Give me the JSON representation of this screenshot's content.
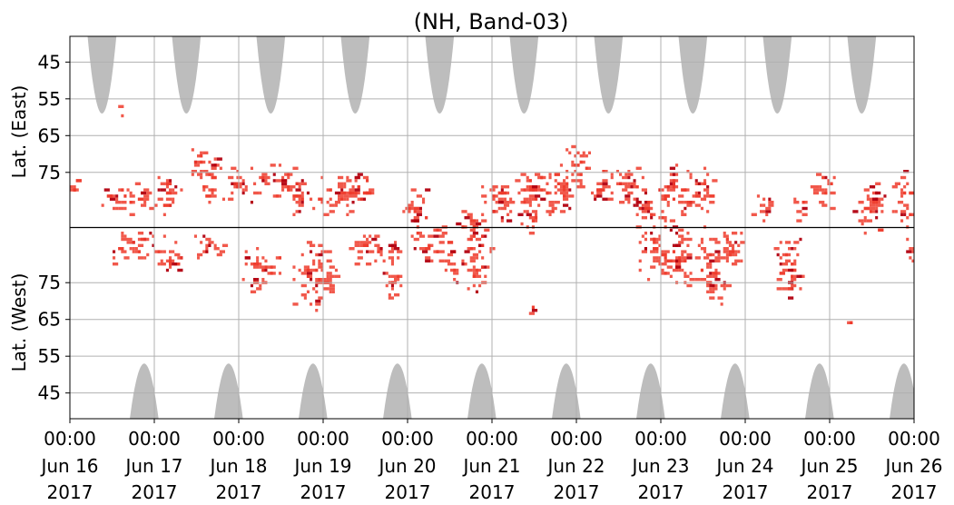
{
  "chart_data": {
    "type": "heatmap",
    "title": "(NH, Band-03)",
    "ylabel_top": "Lat. (East)",
    "ylabel_bottom": "Lat. (West)",
    "x_tick_labels": [
      {
        "time": "00:00",
        "date": "Jun 16",
        "year": "2017"
      },
      {
        "time": "00:00",
        "date": "Jun 17",
        "year": "2017"
      },
      {
        "time": "00:00",
        "date": "Jun 18",
        "year": "2017"
      },
      {
        "time": "00:00",
        "date": "Jun 19",
        "year": "2017"
      },
      {
        "time": "00:00",
        "date": "Jun 20",
        "year": "2017"
      },
      {
        "time": "00:00",
        "date": "Jun 21",
        "year": "2017"
      },
      {
        "time": "00:00",
        "date": "Jun 22",
        "year": "2017"
      },
      {
        "time": "00:00",
        "date": "Jun 23",
        "year": "2017"
      },
      {
        "time": "00:00",
        "date": "Jun 24",
        "year": "2017"
      },
      {
        "time": "00:00",
        "date": "Jun 25",
        "year": "2017"
      },
      {
        "time": "00:00",
        "date": "Jun 26",
        "year": "2017"
      }
    ],
    "xlim": [
      "2017-06-16 00:00",
      "2017-06-26 00:00"
    ],
    "y_tick_labels_top": [
      "45",
      "55",
      "65",
      "75"
    ],
    "y_tick_labels_bottom": [
      "75",
      "65",
      "55",
      "45"
    ],
    "y_ticks_top_lat": [
      45,
      55,
      65,
      75
    ],
    "y_ticks_bottom_lat": [
      75,
      65,
      55,
      45
    ],
    "ylim_east": [
      38,
      90
    ],
    "ylim_west": [
      90,
      38
    ],
    "grid": true,
    "colors": {
      "activity": "#ef3b2c",
      "activity_strong": "#b2000f",
      "daylight_shade": "#bdbdbd",
      "grid": "#b0b0b0",
      "equator_line": "#000000"
    },
    "daylight_east": [
      {
        "center_day": 0.38,
        "half_width_days": 0.17,
        "min_lat": 59
      },
      {
        "center_day": 1.38,
        "half_width_days": 0.17,
        "min_lat": 59
      },
      {
        "center_day": 2.38,
        "half_width_days": 0.17,
        "min_lat": 59
      },
      {
        "center_day": 3.38,
        "half_width_days": 0.17,
        "min_lat": 59
      },
      {
        "center_day": 4.38,
        "half_width_days": 0.17,
        "min_lat": 59
      },
      {
        "center_day": 5.38,
        "half_width_days": 0.17,
        "min_lat": 59
      },
      {
        "center_day": 6.38,
        "half_width_days": 0.17,
        "min_lat": 59
      },
      {
        "center_day": 7.38,
        "half_width_days": 0.17,
        "min_lat": 59
      },
      {
        "center_day": 8.38,
        "half_width_days": 0.17,
        "min_lat": 59
      },
      {
        "center_day": 9.38,
        "half_width_days": 0.17,
        "min_lat": 59
      }
    ],
    "daylight_west": [
      {
        "center_day": 0.88,
        "half_width_days": 0.17,
        "min_lat": 53
      },
      {
        "center_day": 1.88,
        "half_width_days": 0.17,
        "min_lat": 53
      },
      {
        "center_day": 2.88,
        "half_width_days": 0.17,
        "min_lat": 53
      },
      {
        "center_day": 3.88,
        "half_width_days": 0.17,
        "min_lat": 53
      },
      {
        "center_day": 4.88,
        "half_width_days": 0.17,
        "min_lat": 53
      },
      {
        "center_day": 5.88,
        "half_width_days": 0.17,
        "min_lat": 53
      },
      {
        "center_day": 6.88,
        "half_width_days": 0.17,
        "min_lat": 53
      },
      {
        "center_day": 7.88,
        "half_width_days": 0.17,
        "min_lat": 53
      },
      {
        "center_day": 8.88,
        "half_width_days": 0.17,
        "min_lat": 53
      },
      {
        "center_day": 9.88,
        "half_width_days": 0.17,
        "min_lat": 53
      }
    ],
    "activity_clusters": [
      {
        "day": 0.05,
        "lat": 79,
        "hemisphere": "east",
        "d_width": 0.12,
        "lat_spread": 3,
        "intensity": 0.4
      },
      {
        "day": 0.6,
        "lat": 58,
        "hemisphere": "east",
        "d_width": 0.05,
        "lat_spread": 2,
        "intensity": 0.4
      },
      {
        "day": 0.7,
        "lat": 82,
        "hemisphere": "east",
        "d_width": 0.35,
        "lat_spread": 5,
        "intensity": 0.5
      },
      {
        "day": 0.8,
        "lat": 85,
        "hemisphere": "west",
        "d_width": 0.35,
        "lat_spread": 5,
        "intensity": 0.5
      },
      {
        "day": 1.15,
        "lat": 80,
        "hemisphere": "east",
        "d_width": 0.2,
        "lat_spread": 6,
        "intensity": 0.5
      },
      {
        "day": 1.2,
        "lat": 82,
        "hemisphere": "west",
        "d_width": 0.2,
        "lat_spread": 5,
        "intensity": 0.5
      },
      {
        "day": 1.6,
        "lat": 75,
        "hemisphere": "east",
        "d_width": 0.2,
        "lat_spread": 9,
        "intensity": 0.8
      },
      {
        "day": 1.65,
        "lat": 85,
        "hemisphere": "west",
        "d_width": 0.2,
        "lat_spread": 4,
        "intensity": 0.8
      },
      {
        "day": 2.0,
        "lat": 79,
        "hemisphere": "east",
        "d_width": 0.2,
        "lat_spread": 6,
        "intensity": 0.6
      },
      {
        "day": 2.25,
        "lat": 79,
        "hemisphere": "west",
        "d_width": 0.25,
        "lat_spread": 7,
        "intensity": 0.5
      },
      {
        "day": 2.5,
        "lat": 77,
        "hemisphere": "east",
        "d_width": 0.3,
        "lat_spread": 6,
        "intensity": 0.5
      },
      {
        "day": 2.75,
        "lat": 82,
        "hemisphere": "east",
        "d_width": 0.15,
        "lat_spread": 6,
        "intensity": 0.9
      },
      {
        "day": 2.9,
        "lat": 77,
        "hemisphere": "west",
        "d_width": 0.3,
        "lat_spread": 10,
        "intensity": 0.7
      },
      {
        "day": 3.2,
        "lat": 81,
        "hemisphere": "east",
        "d_width": 0.3,
        "lat_spread": 6,
        "intensity": 0.6
      },
      {
        "day": 3.4,
        "lat": 79,
        "hemisphere": "east",
        "d_width": 0.2,
        "lat_spread": 6,
        "intensity": 0.5
      },
      {
        "day": 3.5,
        "lat": 85,
        "hemisphere": "west",
        "d_width": 0.25,
        "lat_spread": 5,
        "intensity": 0.5
      },
      {
        "day": 3.8,
        "lat": 78,
        "hemisphere": "west",
        "d_width": 0.15,
        "lat_spread": 10,
        "intensity": 0.5
      },
      {
        "day": 4.1,
        "lat": 85,
        "hemisphere": "east",
        "d_width": 0.2,
        "lat_spread": 6,
        "intensity": 0.5
      },
      {
        "day": 4.25,
        "lat": 86,
        "hemisphere": "west",
        "d_width": 0.25,
        "lat_spread": 6,
        "intensity": 0.5
      },
      {
        "day": 4.5,
        "lat": 80,
        "hemisphere": "west",
        "d_width": 0.1,
        "lat_spread": 7,
        "intensity": 0.4
      },
      {
        "day": 4.75,
        "lat": 88,
        "hemisphere": "east",
        "d_width": 0.2,
        "lat_spread": 3,
        "intensity": 0.5
      },
      {
        "day": 4.8,
        "lat": 83,
        "hemisphere": "west",
        "d_width": 0.2,
        "lat_spread": 12,
        "intensity": 0.6
      },
      {
        "day": 5.05,
        "lat": 83,
        "hemisphere": "east",
        "d_width": 0.25,
        "lat_spread": 7,
        "intensity": 0.5
      },
      {
        "day": 5.45,
        "lat": 68,
        "hemisphere": "west",
        "d_width": 0.05,
        "lat_spread": 4,
        "intensity": 0.4
      },
      {
        "day": 5.5,
        "lat": 82,
        "hemisphere": "east",
        "d_width": 0.25,
        "lat_spread": 11,
        "intensity": 0.5
      },
      {
        "day": 5.8,
        "lat": 79,
        "hemisphere": "east",
        "d_width": 0.2,
        "lat_spread": 8,
        "intensity": 0.5
      },
      {
        "day": 6.0,
        "lat": 73,
        "hemisphere": "east",
        "d_width": 0.2,
        "lat_spread": 7,
        "intensity": 0.5
      },
      {
        "day": 6.3,
        "lat": 80,
        "hemisphere": "east",
        "d_width": 0.15,
        "lat_spread": 7,
        "intensity": 0.4
      },
      {
        "day": 6.6,
        "lat": 78,
        "hemisphere": "east",
        "d_width": 0.2,
        "lat_spread": 7,
        "intensity": 0.5
      },
      {
        "day": 6.8,
        "lat": 84,
        "hemisphere": "east",
        "d_width": 0.2,
        "lat_spread": 7,
        "intensity": 0.9
      },
      {
        "day": 6.9,
        "lat": 85,
        "hemisphere": "west",
        "d_width": 0.2,
        "lat_spread": 10,
        "intensity": 0.5
      },
      {
        "day": 7.15,
        "lat": 80,
        "hemisphere": "east",
        "d_width": 0.2,
        "lat_spread": 10,
        "intensity": 0.5
      },
      {
        "day": 7.2,
        "lat": 82,
        "hemisphere": "west",
        "d_width": 0.25,
        "lat_spread": 10,
        "intensity": 0.5
      },
      {
        "day": 7.45,
        "lat": 80,
        "hemisphere": "east",
        "d_width": 0.2,
        "lat_spread": 8,
        "intensity": 0.5
      },
      {
        "day": 7.6,
        "lat": 80,
        "hemisphere": "west",
        "d_width": 0.2,
        "lat_spread": 12,
        "intensity": 0.7
      },
      {
        "day": 7.8,
        "lat": 84,
        "hemisphere": "west",
        "d_width": 0.2,
        "lat_spread": 6,
        "intensity": 0.5
      },
      {
        "day": 8.2,
        "lat": 84,
        "hemisphere": "east",
        "d_width": 0.15,
        "lat_spread": 4,
        "intensity": 0.5
      },
      {
        "day": 8.5,
        "lat": 80,
        "hemisphere": "west",
        "d_width": 0.2,
        "lat_spread": 10,
        "intensity": 0.5
      },
      {
        "day": 8.6,
        "lat": 84,
        "hemisphere": "east",
        "d_width": 0.1,
        "lat_spread": 4,
        "intensity": 0.4
      },
      {
        "day": 8.9,
        "lat": 80,
        "hemisphere": "east",
        "d_width": 0.15,
        "lat_spread": 7,
        "intensity": 0.5
      },
      {
        "day": 9.2,
        "lat": 66,
        "hemisphere": "west",
        "d_width": 0.05,
        "lat_spread": 3,
        "intensity": 0.4
      },
      {
        "day": 9.5,
        "lat": 84,
        "hemisphere": "east",
        "d_width": 0.25,
        "lat_spread": 8,
        "intensity": 0.7
      },
      {
        "day": 9.85,
        "lat": 82,
        "hemisphere": "east",
        "d_width": 0.15,
        "lat_spread": 8,
        "intensity": 0.5
      },
      {
        "day": 9.95,
        "lat": 84,
        "hemisphere": "west",
        "d_width": 0.08,
        "lat_spread": 4,
        "intensity": 0.5
      }
    ]
  }
}
